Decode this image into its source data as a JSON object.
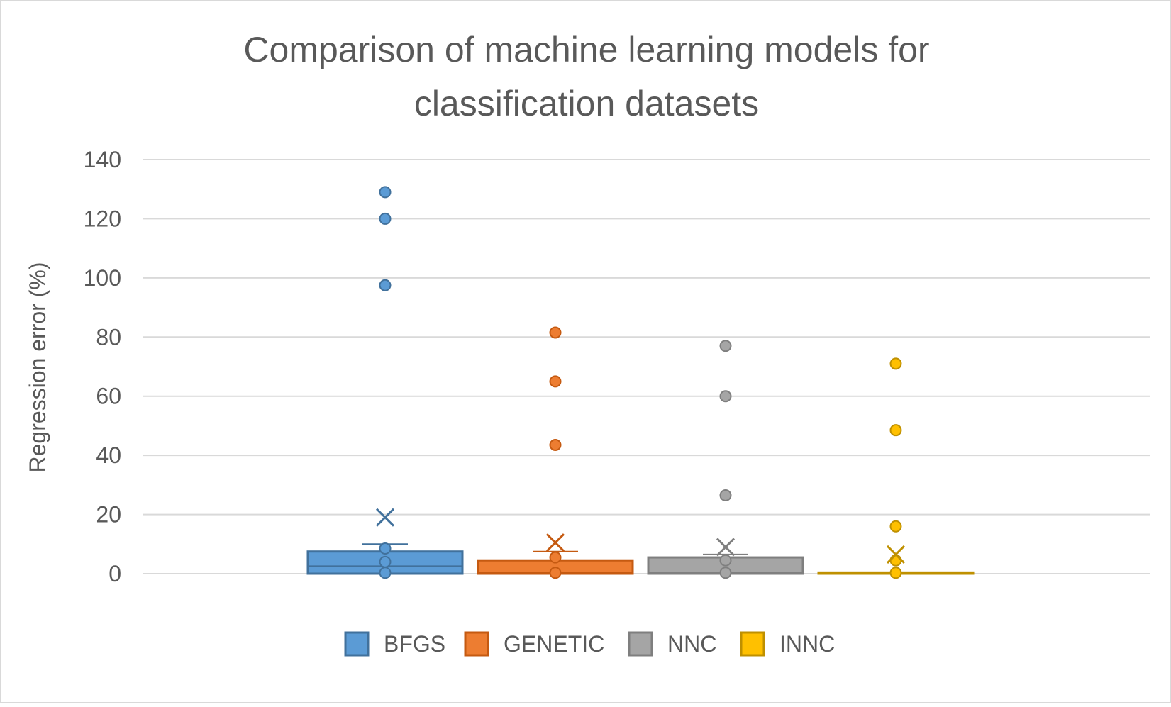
{
  "chart_data": {
    "type": "box",
    "title": "Comparison of machine learning models for classification datasets",
    "title_lines": [
      "Comparison of machine learning models for",
      "classification datasets"
    ],
    "ylabel": "Regression error (%)",
    "xlabel": "",
    "ylim": [
      0,
      140
    ],
    "yticks": [
      "0",
      "20",
      "40",
      "60",
      "80",
      "100",
      "120",
      "140"
    ],
    "grid": true,
    "legend_position": "bottom",
    "series": [
      {
        "name": "BFGS",
        "color": "#5b9bd5",
        "stroke": "#41719c",
        "q1": 0,
        "median": 2.5,
        "q3": 7.5,
        "whisker_low": 0,
        "whisker_high": 10,
        "mean": 19,
        "points": [
          0.3,
          4,
          8.5,
          97.5,
          120,
          129
        ]
      },
      {
        "name": "GENETIC",
        "color": "#ed7d31",
        "stroke": "#c55a11",
        "q1": 0,
        "median": 0.4,
        "q3": 4.5,
        "whisker_low": 0,
        "whisker_high": 7.5,
        "mean": 10.5,
        "points": [
          0.3,
          5.5,
          43.5,
          65,
          81.5
        ]
      },
      {
        "name": "NNC",
        "color": "#a5a5a5",
        "stroke": "#7f7f7f",
        "q1": 0,
        "median": 0.4,
        "q3": 5.5,
        "whisker_low": 0,
        "whisker_high": 6.5,
        "mean": 9,
        "points": [
          0.3,
          4.5,
          26.5,
          60,
          77
        ]
      },
      {
        "name": "INNC",
        "color": "#ffc000",
        "stroke": "#bf9000",
        "q1": 0,
        "median": 0.2,
        "q3": 0.4,
        "whisker_low": 0,
        "whisker_high": 0.4,
        "mean": 6.5,
        "points": [
          0.3,
          4.5,
          16,
          48.5,
          71
        ]
      }
    ]
  }
}
